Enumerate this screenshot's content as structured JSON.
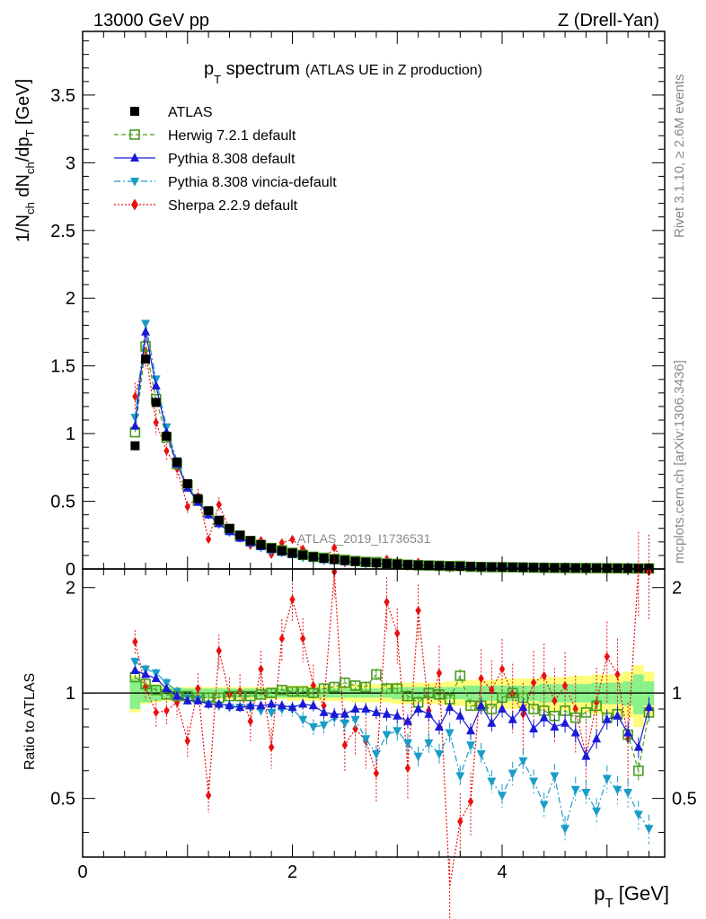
{
  "header": {
    "energy_label": "13000 GeV pp",
    "process_label": "Z (Drell-Yan)"
  },
  "side_labels": {
    "rivet": "Rivet 3.1.10, ≥ 2.6M events",
    "mcplots": "mcplots.cern.ch [arXiv:1306.3436]"
  },
  "watermark": "ATLAS_2019_I1736531",
  "chart_data": {
    "type": "scatter",
    "title_main": "p",
    "title_sub": "T",
    "title_rest": " spectrum",
    "title_paren": "(ATLAS UE in Z production)",
    "xlabel": "p",
    "xlabel_sub": "T",
    "xlabel_unit": " [GeV]",
    "ylabel": "1/N_ch dN_ch/dp_T [GeV]",
    "ratio_ylabel": "Ratio to ATLAS",
    "xlim": [
      0,
      5.55
    ],
    "ylim": [
      0,
      3.97
    ],
    "ratio_ylim": [
      0.34,
      2.26
    ],
    "x_ticks": [
      "0",
      "2",
      "4"
    ],
    "y_ticks": [
      "0",
      "0.5",
      "1",
      "1.5",
      "2",
      "2.5",
      "3",
      "3.5"
    ],
    "ratio_ticks": [
      "0.5",
      "1",
      "2"
    ],
    "x": [
      0.5,
      0.6,
      0.7,
      0.8,
      0.9,
      1.0,
      1.1,
      1.2,
      1.3,
      1.4,
      1.5,
      1.6,
      1.7,
      1.8,
      1.9,
      2.0,
      2.1,
      2.2,
      2.3,
      2.4,
      2.5,
      2.6,
      2.7,
      2.8,
      2.9,
      3.0,
      3.1,
      3.2,
      3.3,
      3.4,
      3.5,
      3.6,
      3.7,
      3.8,
      3.9,
      4.0,
      4.1,
      4.2,
      4.3,
      4.4,
      4.5,
      4.6,
      4.7,
      4.8,
      4.9,
      5.0,
      5.1,
      5.2,
      5.3,
      5.4
    ],
    "atlas": [
      0.91,
      1.55,
      1.23,
      0.98,
      0.79,
      0.63,
      0.52,
      0.43,
      0.36,
      0.3,
      0.25,
      0.21,
      0.18,
      0.155,
      0.135,
      0.118,
      0.103,
      0.09,
      0.08,
      0.071,
      0.063,
      0.056,
      0.05,
      0.045,
      0.04,
      0.036,
      0.032,
      0.029,
      0.026,
      0.024,
      0.022,
      0.02,
      0.018,
      0.016,
      0.015,
      0.014,
      0.013,
      0.012,
      0.011,
      0.01,
      0.009,
      0.0085,
      0.008,
      0.0075,
      0.007,
      0.0065,
      0.006,
      0.0055,
      0.005,
      0.0047
    ],
    "ratios": {
      "herwig": [
        1.11,
        1.06,
        1.02,
        0.99,
        0.98,
        0.98,
        0.97,
        0.97,
        0.97,
        0.98,
        0.98,
        0.98,
        0.99,
        1.0,
        1.02,
        1.01,
        1.01,
        1.0,
        1.03,
        1.04,
        1.07,
        1.05,
        1.04,
        1.13,
        1.03,
        1.03,
        0.98,
        0.94,
        1.0,
        0.99,
        0.96,
        1.12,
        0.92,
        0.92,
        0.9,
        0.97,
        1.0,
        0.97,
        0.9,
        0.89,
        0.86,
        0.89,
        0.85,
        0.88,
        0.92,
        0.85,
        0.87,
        0.76,
        0.6,
        0.88
      ],
      "pythia": [
        1.16,
        1.13,
        1.1,
        1.03,
        0.98,
        0.95,
        0.95,
        0.93,
        0.93,
        0.92,
        0.91,
        0.92,
        0.92,
        0.93,
        0.92,
        0.91,
        0.93,
        0.92,
        0.88,
        0.87,
        0.87,
        0.9,
        0.9,
        0.88,
        0.87,
        0.86,
        0.83,
        0.9,
        0.87,
        0.8,
        0.91,
        0.86,
        0.78,
        0.92,
        0.82,
        0.9,
        0.84,
        0.91,
        0.79,
        0.85,
        0.8,
        0.82,
        0.77,
        0.66,
        0.74,
        0.84,
        0.86,
        0.77,
        0.7,
        0.91
      ],
      "vincia": [
        1.23,
        1.17,
        1.14,
        1.07,
        1.01,
        0.97,
        0.96,
        0.93,
        0.92,
        0.91,
        0.91,
        0.91,
        0.89,
        0.88,
        0.9,
        0.9,
        0.84,
        0.8,
        0.81,
        0.85,
        0.82,
        0.84,
        0.74,
        0.67,
        0.76,
        0.78,
        0.72,
        0.66,
        0.72,
        0.67,
        0.77,
        0.58,
        0.71,
        0.67,
        0.56,
        0.51,
        0.59,
        0.64,
        0.56,
        0.48,
        0.58,
        0.41,
        0.53,
        0.52,
        0.46,
        0.57,
        0.53,
        0.52,
        0.45,
        0.41
      ],
      "sherpa": [
        1.4,
        1.04,
        0.88,
        0.89,
        0.94,
        0.73,
        1.03,
        0.51,
        1.32,
        0.99,
        1.01,
        0.83,
        1.17,
        0.7,
        1.43,
        1.85,
        1.43,
        1.05,
        0.92,
        2.22,
        0.71,
        0.79,
        0.73,
        0.59,
        1.82,
        1.48,
        0.61,
        1.72,
        0.89,
        1.14,
        0.28,
        0.43,
        0.49,
        1.1,
        1.02,
        1.17,
        0.99,
        0.87,
        1.07,
        1.12,
        0.95,
        1.05,
        0.9,
        0.66,
        0.94,
        1.27,
        1.13,
        0.74,
        2.27,
        2.22
      ]
    },
    "legend": [
      {
        "key": "atlas",
        "label": "ATLAS",
        "color": "#000000",
        "marker": "square-filled"
      },
      {
        "key": "herwig",
        "label": "Herwig 7.2.1 default",
        "color": "#4a9a1e",
        "marker": "square-open"
      },
      {
        "key": "pythia",
        "label": "Pythia 8.308 default",
        "color": "#1a1ad6",
        "marker": "triangle-up"
      },
      {
        "key": "vincia",
        "label": "Pythia 8.308 vincia-default",
        "color": "#1a9cc8",
        "marker": "triangle-down"
      },
      {
        "key": "sherpa",
        "label": "Sherpa 2.2.9 default",
        "color": "#e81010",
        "marker": "diamond"
      }
    ],
    "band_colors": {
      "outer": "#fdfd7a",
      "inner": "#8af08a"
    },
    "band_inner": [
      0.1,
      0.06,
      0.05,
      0.04,
      0.03,
      0.03,
      0.03,
      0.03,
      0.03,
      0.03,
      0.03,
      0.03,
      0.03,
      0.03,
      0.03,
      0.03,
      0.03,
      0.03,
      0.03,
      0.03,
      0.03,
      0.03,
      0.03,
      0.03,
      0.03,
      0.04,
      0.04,
      0.04,
      0.04,
      0.04,
      0.04,
      0.04,
      0.05,
      0.05,
      0.05,
      0.05,
      0.05,
      0.05,
      0.05,
      0.06,
      0.06,
      0.06,
      0.06,
      0.06,
      0.07,
      0.07,
      0.07,
      0.08,
      0.13,
      0.08
    ],
    "band_outer": [
      0.12,
      0.07,
      0.06,
      0.05,
      0.04,
      0.04,
      0.04,
      0.04,
      0.04,
      0.04,
      0.04,
      0.04,
      0.04,
      0.04,
      0.04,
      0.05,
      0.05,
      0.05,
      0.05,
      0.05,
      0.05,
      0.06,
      0.06,
      0.06,
      0.06,
      0.07,
      0.07,
      0.07,
      0.07,
      0.07,
      0.08,
      0.08,
      0.09,
      0.09,
      0.09,
      0.1,
      0.1,
      0.1,
      0.1,
      0.11,
      0.11,
      0.11,
      0.12,
      0.12,
      0.13,
      0.13,
      0.13,
      0.15,
      0.2,
      0.15
    ]
  }
}
